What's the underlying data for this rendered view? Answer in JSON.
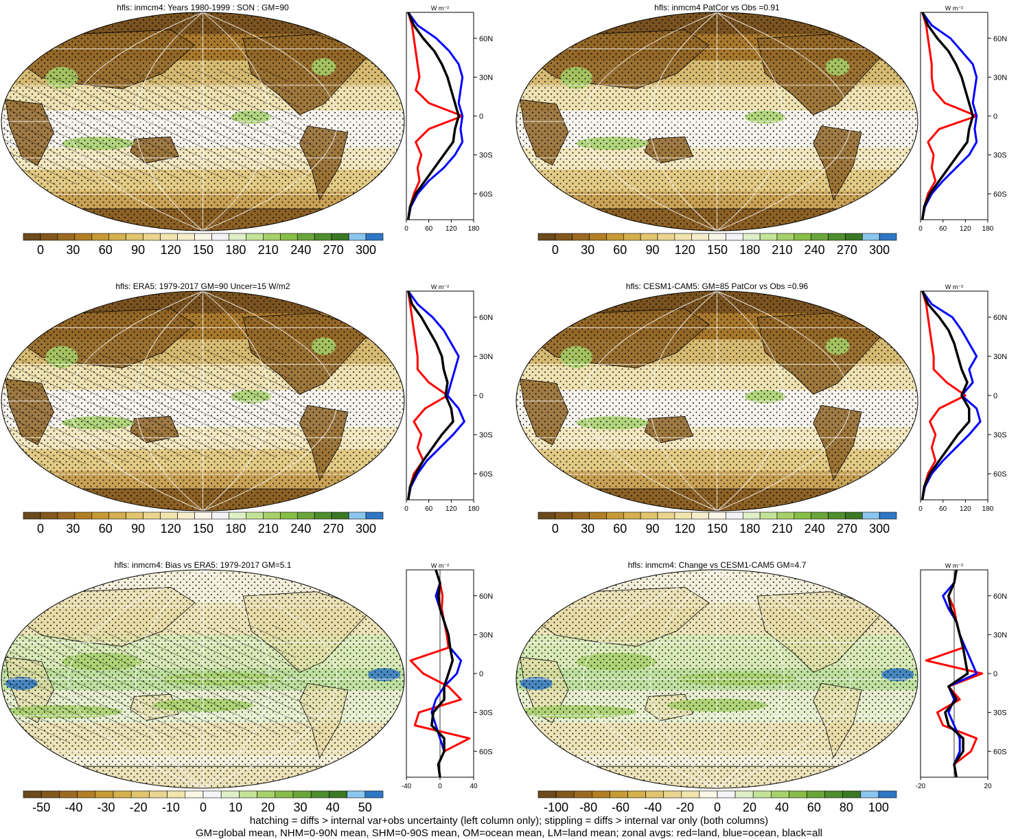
{
  "footer": {
    "line1": "hatching = diffs > internal var+obs uncertainty (left column only); stippling = diffs > internal var only (both columns)",
    "line2": "GM=global mean, NHM=0-90N mean, SHM=0-90S mean, OM=ocean mean, LM=land mean; zonal avgs: red=land, blue=ocean, black=all"
  },
  "colors": {
    "land_line": "#ff0000",
    "ocean_line": "#0000ff",
    "all_line": "#000000",
    "abs_scale": [
      "#6b4a1c",
      "#83581e",
      "#9b6a22",
      "#b27f25",
      "#c69a35",
      "#d4b04e",
      "#e0c46e",
      "#e9d58f",
      "#f1e4ae",
      "#f6eecb",
      "#fbf7e8",
      "#f4f4f8",
      "#dff0c8",
      "#c3e398",
      "#a6d06a",
      "#88bd48",
      "#6aa53a",
      "#4f8e2e",
      "#3b7825",
      "#8bc6ee",
      "#2f77c4"
    ],
    "diff_scale": [
      "#6b4a1c",
      "#83581e",
      "#9b6a22",
      "#b27f25",
      "#c69a35",
      "#d4b04e",
      "#e0c46e",
      "#e9d58f",
      "#f1e4ae",
      "#fbf7e8",
      "#f4f4f8",
      "#dff0c8",
      "#c3e398",
      "#a6d06a",
      "#88bd48",
      "#6aa53a",
      "#4f8e2e",
      "#3b7825",
      "#8bc6ee",
      "#2f77c4"
    ]
  },
  "chart_data": [
    {
      "type": "map+zonal-profile",
      "title": "hfls: inmcm4: Years 1980-1999 : SON : GM=90",
      "colorbar_ticks": [
        "0",
        "30",
        "60",
        "90",
        "120",
        "150",
        "180",
        "210",
        "240",
        "270",
        "300"
      ],
      "colorbar_kind": "abs",
      "hatching": true,
      "profile": {
        "xlabel": "W m⁻²",
        "xlim": [
          0,
          180
        ],
        "xticks": [
          "0",
          "60",
          "120",
          "180"
        ],
        "yticks": [
          "60N",
          "30N",
          "0",
          "30S",
          "60S"
        ],
        "lat": [
          80,
          70,
          60,
          50,
          40,
          30,
          20,
          10,
          0,
          -10,
          -20,
          -30,
          -40,
          -50,
          -60,
          -70,
          -80
        ],
        "land": [
          5,
          15,
          20,
          25,
          30,
          35,
          25,
          60,
          150,
          60,
          25,
          40,
          30,
          35,
          20,
          10,
          5
        ],
        "ocean": [
          5,
          30,
          80,
          115,
          140,
          150,
          145,
          140,
          150,
          145,
          150,
          130,
          100,
          60,
          30,
          12,
          5
        ],
        "all": [
          5,
          20,
          45,
          75,
          95,
          110,
          120,
          130,
          140,
          130,
          125,
          100,
          75,
          50,
          25,
          10,
          5
        ]
      }
    },
    {
      "type": "map+zonal-profile",
      "title": "hfls: inmcm4 PatCor vs Obs =0.91",
      "colorbar_ticks": [
        "0",
        "30",
        "60",
        "90",
        "120",
        "150",
        "180",
        "210",
        "240",
        "270",
        "300"
      ],
      "colorbar_kind": "abs",
      "hatching": false,
      "profile": {
        "xlabel": "W m⁻²",
        "xlim": [
          0,
          180
        ],
        "xticks": [
          "0",
          "60",
          "120",
          "180"
        ],
        "yticks": [
          "60N",
          "30N",
          "0",
          "30S",
          "60S"
        ],
        "lat": [
          80,
          70,
          60,
          50,
          40,
          30,
          20,
          10,
          0,
          -10,
          -20,
          -30,
          -40,
          -50,
          -60,
          -70,
          -80
        ],
        "land": [
          5,
          15,
          20,
          25,
          30,
          30,
          35,
          65,
          150,
          50,
          20,
          35,
          30,
          40,
          20,
          10,
          5
        ],
        "ocean": [
          5,
          30,
          80,
          110,
          140,
          150,
          145,
          140,
          150,
          145,
          150,
          130,
          95,
          60,
          30,
          12,
          5
        ],
        "all": [
          5,
          20,
          45,
          75,
          95,
          110,
          120,
          130,
          140,
          130,
          125,
          100,
          75,
          50,
          25,
          10,
          5
        ]
      }
    },
    {
      "type": "map+zonal-profile",
      "title": "hfls: ERA5: 1979-2017 GM=90 Uncer=15 W/m2",
      "colorbar_ticks": [
        "0",
        "30",
        "60",
        "90",
        "120",
        "150",
        "180",
        "210",
        "240",
        "270",
        "300"
      ],
      "colorbar_kind": "abs",
      "hatching": true,
      "profile": {
        "xlabel": "W m⁻²",
        "xlim": [
          0,
          180
        ],
        "xticks": [
          "0",
          "60",
          "120",
          "180"
        ],
        "yticks": [
          "60N",
          "30N",
          "0",
          "30S",
          "60S"
        ],
        "lat": [
          80,
          70,
          60,
          50,
          40,
          30,
          20,
          10,
          0,
          -10,
          -20,
          -30,
          -40,
          -50,
          -60,
          -70,
          -80
        ],
        "land": [
          5,
          10,
          15,
          20,
          25,
          30,
          30,
          60,
          110,
          50,
          20,
          40,
          30,
          45,
          20,
          10,
          5
        ],
        "ocean": [
          5,
          30,
          70,
          100,
          120,
          140,
          130,
          120,
          110,
          140,
          155,
          125,
          90,
          55,
          30,
          12,
          5
        ],
        "all": [
          5,
          15,
          40,
          60,
          80,
          95,
          100,
          110,
          105,
          120,
          125,
          95,
          70,
          45,
          25,
          10,
          5
        ]
      }
    },
    {
      "type": "map+zonal-profile",
      "title": "hfls: CESM1-CAM5: GM=85 PatCor vs Obs =0.96",
      "colorbar_ticks": [
        "0",
        "30",
        "60",
        "90",
        "120",
        "150",
        "180",
        "210",
        "240",
        "270",
        "300"
      ],
      "colorbar_kind": "abs",
      "hatching": false,
      "profile": {
        "xlabel": "W m⁻²",
        "xlim": [
          0,
          180
        ],
        "xticks": [
          "0",
          "60",
          "120",
          "180"
        ],
        "yticks": [
          "60N",
          "30N",
          "0",
          "30S",
          "60S"
        ],
        "lat": [
          80,
          70,
          60,
          50,
          40,
          30,
          20,
          10,
          0,
          -10,
          -20,
          -30,
          -40,
          -50,
          -60,
          -70,
          -80
        ],
        "land": [
          5,
          15,
          20,
          25,
          30,
          35,
          35,
          70,
          120,
          50,
          25,
          40,
          30,
          40,
          20,
          10,
          5
        ],
        "ocean": [
          5,
          30,
          85,
          110,
          130,
          150,
          130,
          140,
          110,
          150,
          160,
          130,
          95,
          60,
          30,
          12,
          5
        ],
        "all": [
          5,
          20,
          50,
          75,
          90,
          100,
          110,
          125,
          110,
          130,
          130,
          100,
          75,
          50,
          25,
          10,
          5
        ]
      }
    },
    {
      "type": "map+zonal-profile",
      "title": "hfls: inmcm4: Bias vs ERA5: 1979-2017  GM=5.1",
      "colorbar_ticks": [
        "-50",
        "-40",
        "-30",
        "-20",
        "-10",
        "0",
        "10",
        "20",
        "30",
        "40",
        "50"
      ],
      "colorbar_kind": "diff",
      "hatching": true,
      "profile": {
        "xlabel": "W m⁻²",
        "xlim": [
          -40,
          40
        ],
        "xticks": [
          "-40",
          "0",
          "40"
        ],
        "yticks": [
          "60N",
          "30N",
          "0",
          "30S",
          "60S"
        ],
        "lat": [
          80,
          70,
          60,
          50,
          40,
          30,
          20,
          10,
          0,
          -10,
          -20,
          -30,
          -40,
          -50,
          -60,
          -70,
          -80
        ],
        "land": [
          -5,
          0,
          3,
          2,
          5,
          8,
          10,
          -35,
          -20,
          10,
          25,
          -25,
          -30,
          35,
          5,
          -2,
          0
        ],
        "ocean": [
          -5,
          0,
          -5,
          0,
          5,
          10,
          12,
          25,
          20,
          5,
          -5,
          -10,
          -5,
          0,
          5,
          -2,
          0
        ],
        "all": [
          -5,
          0,
          -2,
          0,
          5,
          10,
          12,
          15,
          10,
          5,
          5,
          -8,
          -10,
          5,
          5,
          -2,
          0
        ]
      }
    },
    {
      "type": "map+zonal-profile",
      "title": "hfls: inmcm4: Change vs CESM1-CAM5 GM=4.7",
      "colorbar_ticks": [
        "-100",
        "-80",
        "-60",
        "-40",
        "-20",
        "0",
        "20",
        "40",
        "60",
        "80",
        "100"
      ],
      "colorbar_kind": "diff",
      "hatching": false,
      "profile": {
        "xlabel": "W m⁻²",
        "xlim": [
          -30,
          30
        ],
        "xticks": [
          "-20",
          "20"
        ],
        "yticks": [
          "60N",
          "30N",
          "0",
          "30S",
          "60S"
        ],
        "lat": [
          80,
          70,
          60,
          50,
          40,
          30,
          20,
          10,
          0,
          -10,
          -20,
          -30,
          -40,
          -50,
          -60,
          -70,
          -80
        ],
        "land": [
          2,
          0,
          -5,
          0,
          2,
          5,
          8,
          -25,
          25,
          -5,
          5,
          -15,
          -10,
          20,
          15,
          0,
          2
        ],
        "ocean": [
          2,
          0,
          -10,
          -5,
          2,
          5,
          10,
          15,
          20,
          -5,
          0,
          -5,
          0,
          5,
          5,
          0,
          2
        ],
        "all": [
          2,
          0,
          -5,
          -3,
          2,
          5,
          8,
          10,
          12,
          -5,
          2,
          -8,
          -5,
          8,
          8,
          0,
          2
        ]
      }
    }
  ]
}
